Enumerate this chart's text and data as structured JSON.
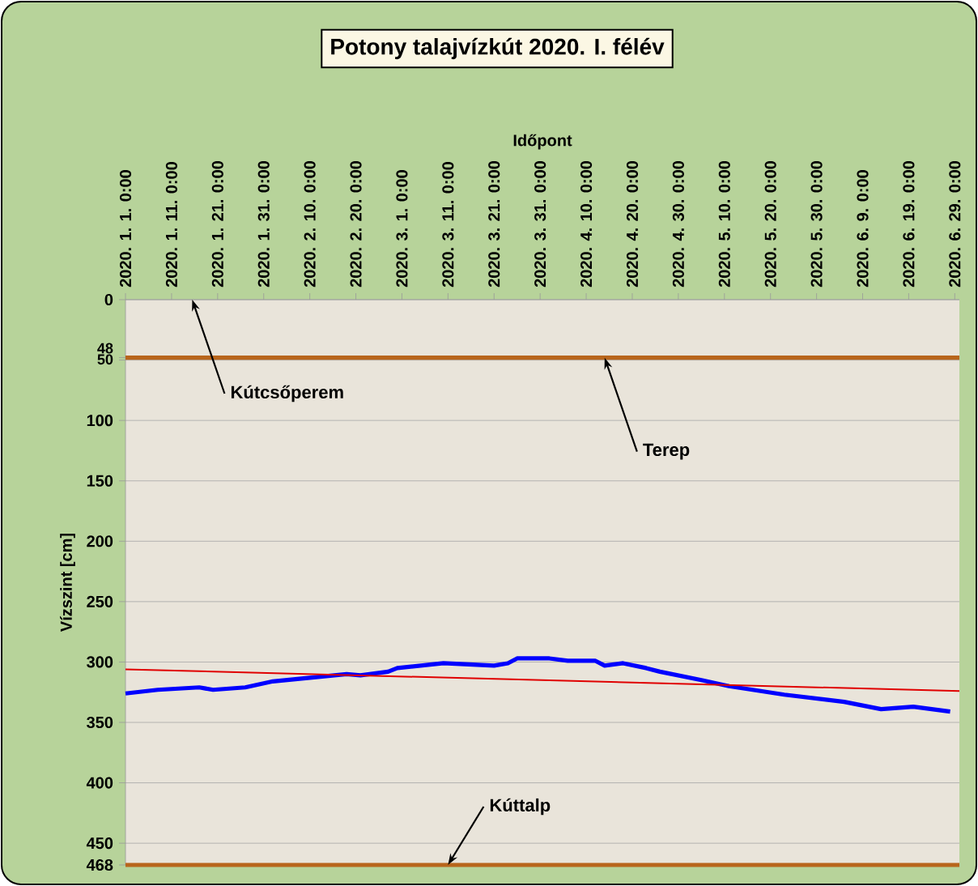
{
  "chart_data": {
    "type": "line",
    "title": "Potony talajvízkút 2020. I. félév",
    "xlabel": "Időpont",
    "ylabel": "Vízszint [cm]",
    "xlim": [
      "2020-01-01",
      "2020-06-30"
    ],
    "xticks": [
      {
        "value": "2020-01-01",
        "label": "2020. 1. 1. 0:00"
      },
      {
        "value": "2020-01-11",
        "label": "2020. 1. 11. 0:00"
      },
      {
        "value": "2020-01-21",
        "label": "2020. 1. 21. 0:00"
      },
      {
        "value": "2020-01-31",
        "label": "2020. 1. 31. 0:00"
      },
      {
        "value": "2020-02-10",
        "label": "2020. 2. 10. 0:00"
      },
      {
        "value": "2020-02-20",
        "label": "2020. 2. 20. 0:00"
      },
      {
        "value": "2020-03-01",
        "label": "2020. 3. 1. 0:00"
      },
      {
        "value": "2020-03-11",
        "label": "2020. 3. 11. 0:00"
      },
      {
        "value": "2020-03-21",
        "label": "2020. 3. 21. 0:00"
      },
      {
        "value": "2020-03-31",
        "label": "2020. 3. 31. 0:00"
      },
      {
        "value": "2020-04-10",
        "label": "2020. 4. 10. 0:00"
      },
      {
        "value": "2020-04-20",
        "label": "2020. 4. 20. 0:00"
      },
      {
        "value": "2020-04-30",
        "label": "2020. 4. 30. 0:00"
      },
      {
        "value": "2020-05-10",
        "label": "2020. 5. 10. 0:00"
      },
      {
        "value": "2020-05-20",
        "label": "2020. 5. 20. 0:00"
      },
      {
        "value": "2020-05-30",
        "label": "2020. 5. 30. 0:00"
      },
      {
        "value": "2020-06-09",
        "label": "2020. 6. 9. 0:00"
      },
      {
        "value": "2020-06-19",
        "label": "2020. 6. 19. 0:00"
      },
      {
        "value": "2020-06-29",
        "label": "2020. 6. 29. 0:00"
      }
    ],
    "ylim": [
      468,
      0
    ],
    "yticks": [
      0,
      48,
      50,
      100,
      150,
      200,
      250,
      300,
      350,
      400,
      450,
      468
    ],
    "grid": "y",
    "marker": "none",
    "line_style": "solid",
    "series": [
      {
        "color": "#0000ff",
        "x": [
          "2020-01-01",
          "2020-01-08",
          "2020-01-17",
          "2020-01-20",
          "2020-01-27",
          "2020-02-02",
          "2020-02-10",
          "2020-02-18",
          "2020-02-21",
          "2020-02-27",
          "2020-02-29",
          "2020-03-10",
          "2020-03-21",
          "2020-03-24",
          "2020-03-26",
          "2020-03-31",
          "2020-04-02",
          "2020-04-06",
          "2020-04-12",
          "2020-04-14",
          "2020-04-18",
          "2020-04-23",
          "2020-04-26",
          "2020-05-05",
          "2020-05-11",
          "2020-05-23",
          "2020-06-05",
          "2020-06-13",
          "2020-06-20",
          "2020-06-28"
        ],
        "values": [
          326,
          323,
          321,
          323,
          321,
          316,
          313,
          310,
          311,
          308,
          305,
          301,
          303,
          301,
          297,
          297,
          297,
          299,
          299,
          303,
          301,
          305,
          308,
          315,
          320,
          327,
          333,
          339,
          337,
          341
        ]
      },
      {
        "color": "#e00000",
        "x": [
          "2020-01-01",
          "2020-06-30"
        ],
        "values": [
          306,
          324
        ]
      }
    ],
    "ref_lines": [
      {
        "axis": "y",
        "value": 48,
        "color": "#b8651b"
      },
      {
        "axis": "y",
        "value": 468,
        "color": "#b8651b"
      }
    ],
    "annotations": [
      "Kútcsőperem",
      {
        "text": "Terep",
        "x": "2020-04-14",
        "y": 48
      },
      {
        "text": "Kúttalp",
        "x": "2020-03-11",
        "y": 468
      }
    ]
  }
}
